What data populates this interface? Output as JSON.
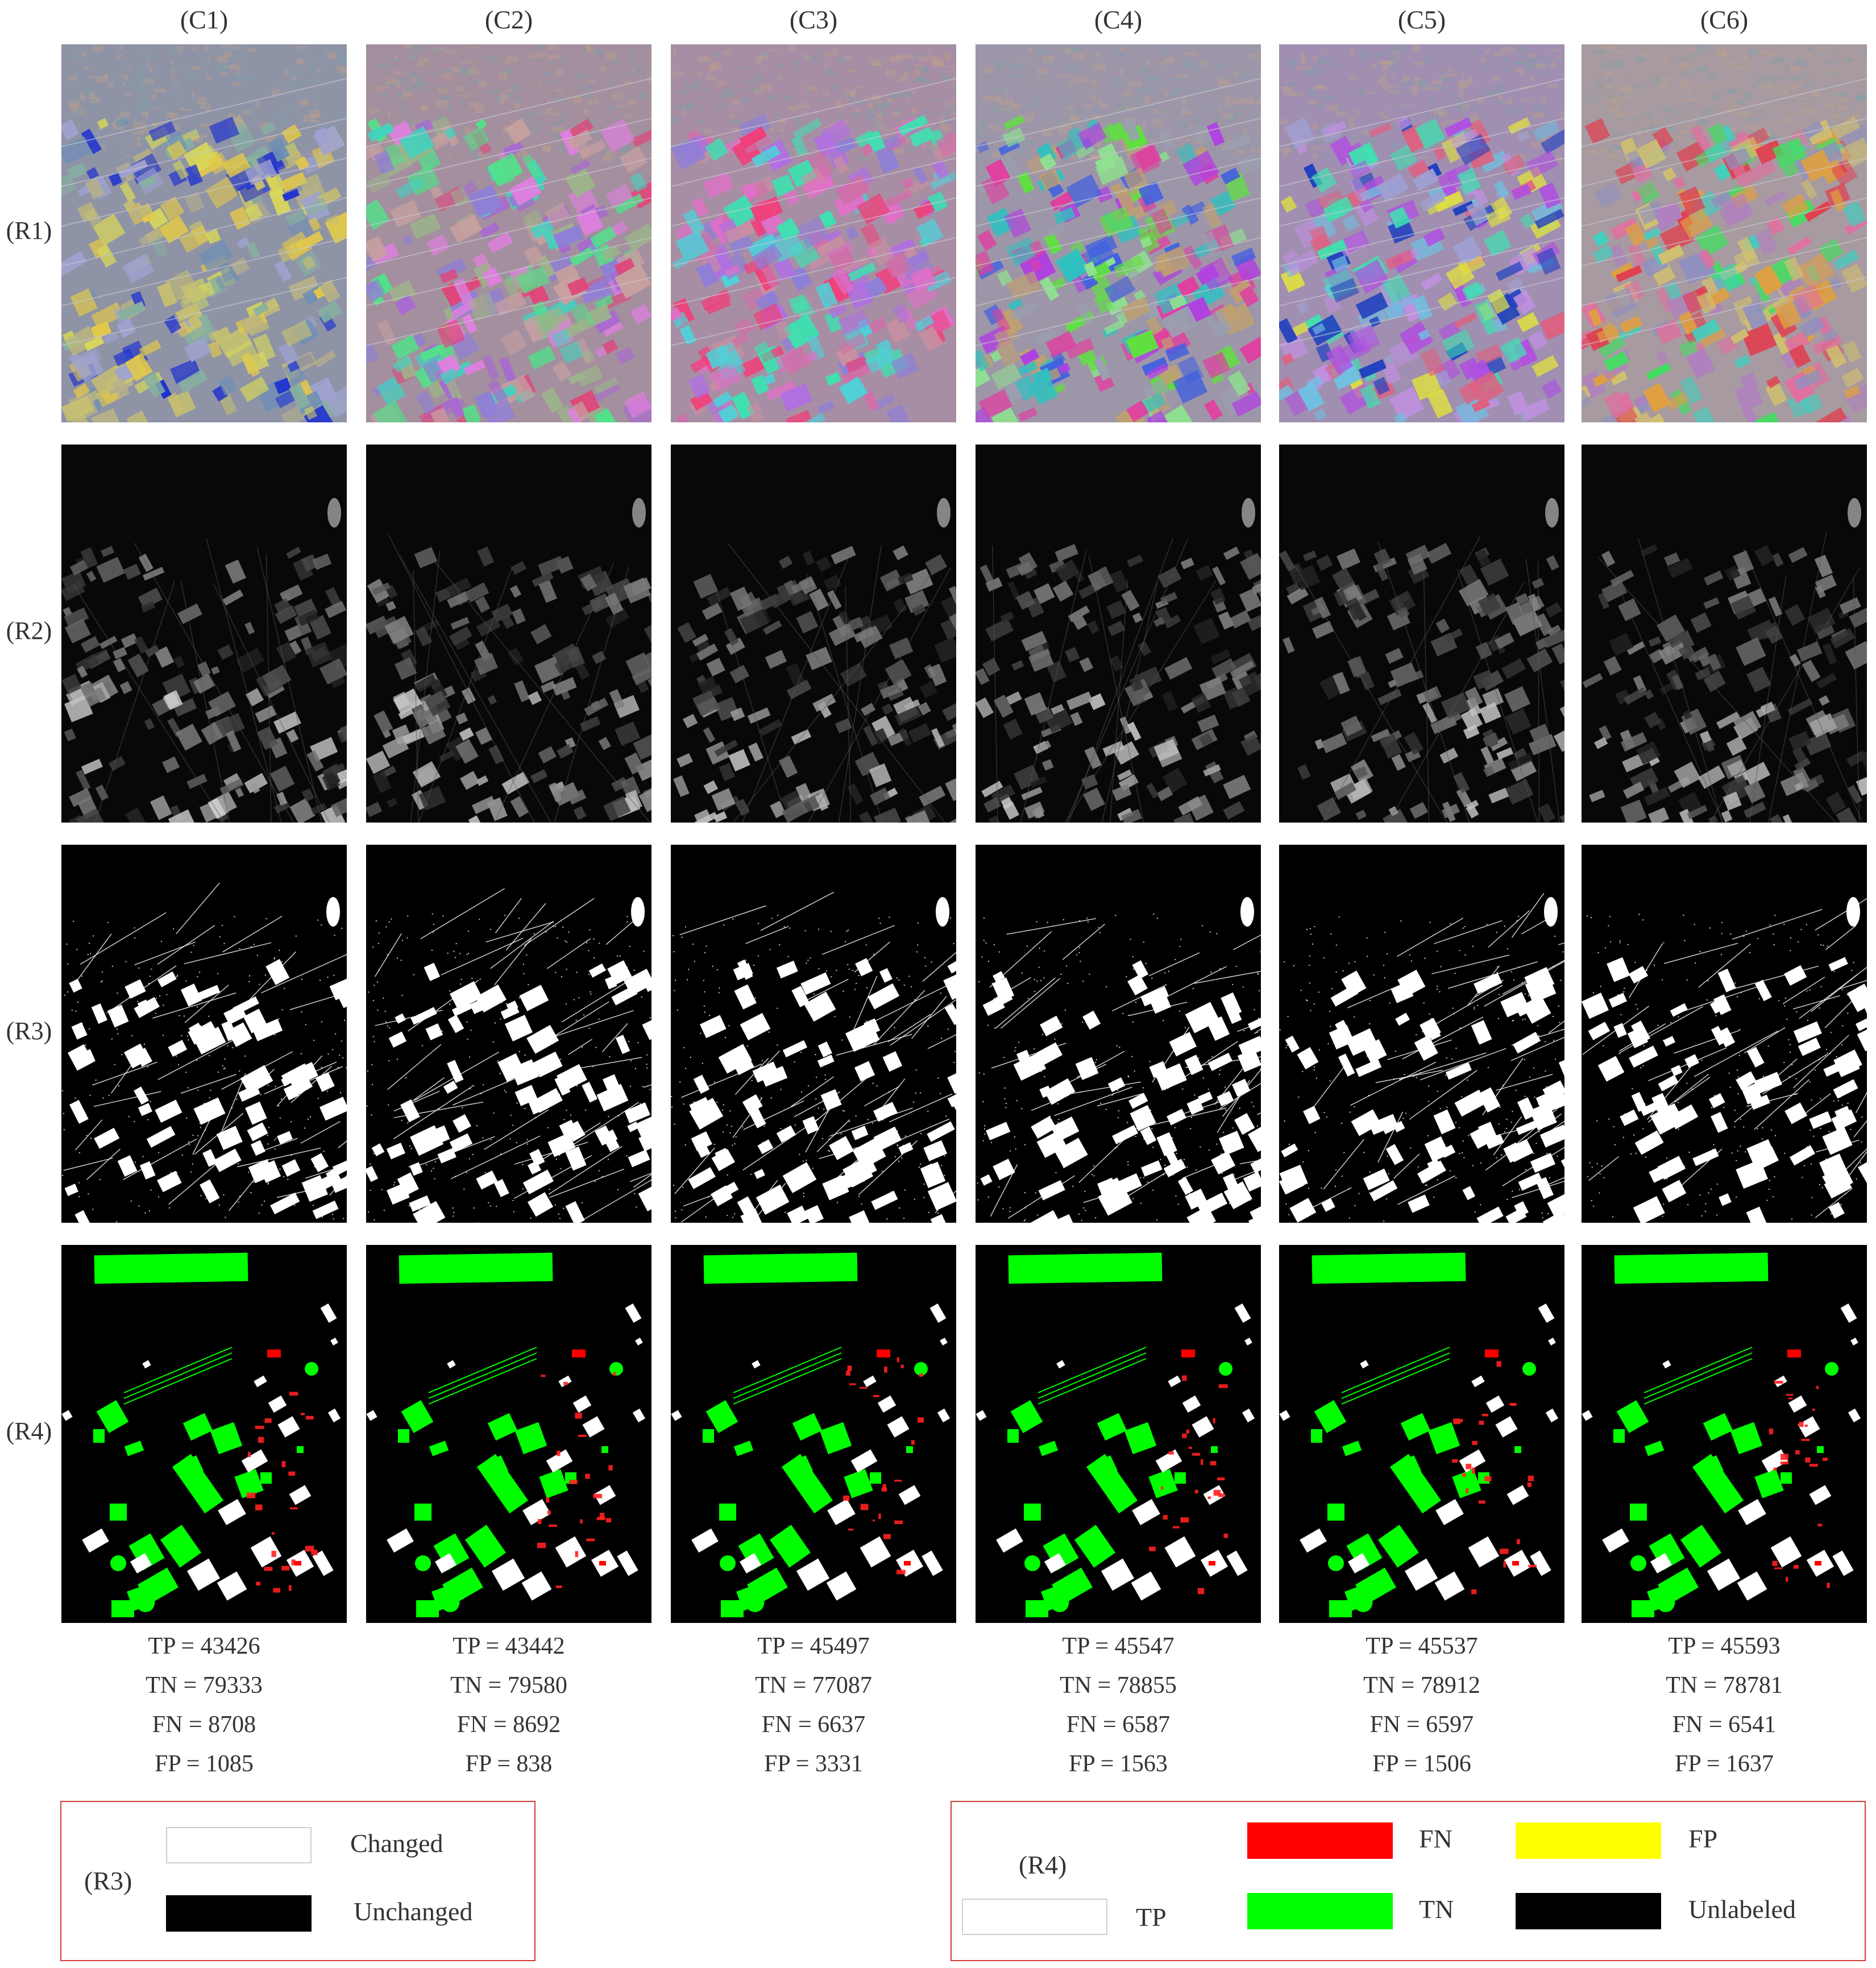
{
  "columns": [
    "(C1)",
    "(C2)",
    "(C3)",
    "(C4)",
    "(C5)",
    "(C6)"
  ],
  "rows": [
    "(R1)",
    "(R2)",
    "(R3)",
    "(R4)"
  ],
  "stats": [
    {
      "tp": "TP = 43426",
      "tn": "TN = 79333",
      "fn": "FN = 8708",
      "fp": "FP = 1085"
    },
    {
      "tp": "TP = 43442",
      "tn": "TN = 79580",
      "fn": "FN = 8692",
      "fp": "FP = 838"
    },
    {
      "tp": "TP = 45497",
      "tn": "TN = 77087",
      "fn": "FN = 6637",
      "fp": "FP = 3331"
    },
    {
      "tp": "TP = 45547",
      "tn": "TN = 78855",
      "fn": "FN = 6587",
      "fp": "FP = 1563"
    },
    {
      "tp": "TP = 45537",
      "tn": "TN = 78912",
      "fn": "FN = 6597",
      "fp": "FP = 1506"
    },
    {
      "tp": "TP = 45593",
      "tn": "TN = 78781",
      "fn": "FN = 6541",
      "fp": "FP = 1637"
    }
  ],
  "legend_r3": {
    "title": "(R3)",
    "changed": "Changed",
    "unchanged": "Unchanged"
  },
  "legend_r4": {
    "title": "(R4)",
    "tp": "TP",
    "fn": "FN",
    "fp": "FP",
    "tn": "TN",
    "unlabeled": "Unlabeled"
  },
  "colors": {
    "fn": "#ff0000",
    "tn": "#00ff00",
    "fp": "#ffff00",
    "tp": "#ffffff",
    "unlabeled": "#000000",
    "legend_border": "#d23c3c"
  }
}
